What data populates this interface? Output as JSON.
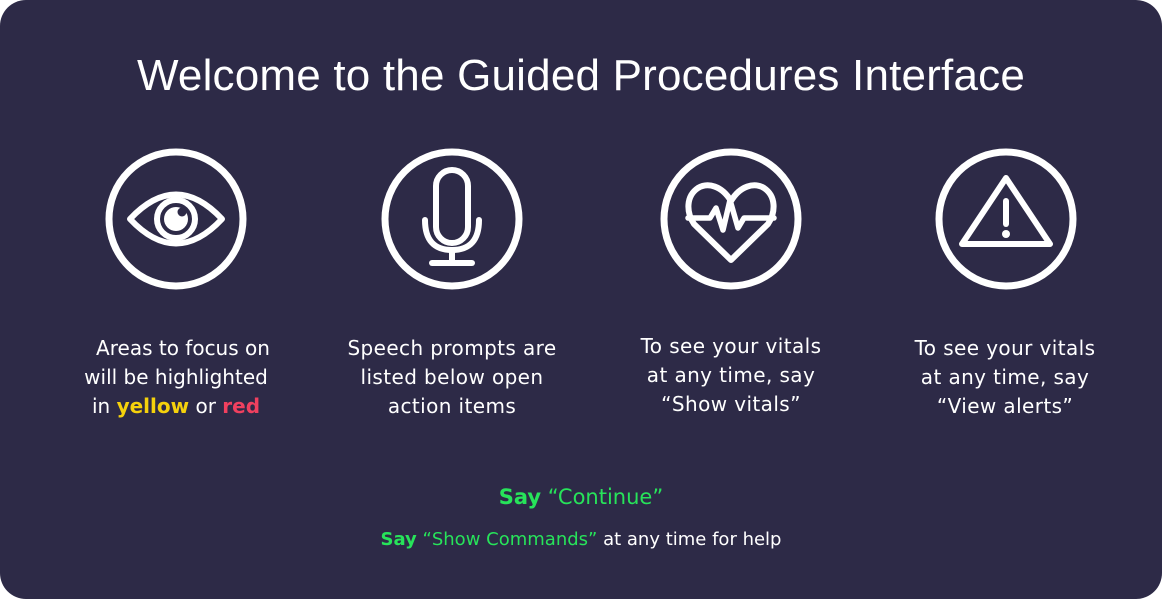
{
  "title": "Welcome to the Guided Procedures Interface",
  "items": [
    {
      "icon": "eye-icon",
      "lines": [
        "Areas to focus on",
        "will be highlighted"
      ],
      "line3_prefix": "in ",
      "highlight_yellow": "yellow",
      "line3_mid": " or ",
      "highlight_red": "red"
    },
    {
      "icon": "microphone-icon",
      "lines": [
        "Speech prompts are",
        "listed below open",
        "action items"
      ]
    },
    {
      "icon": "heart-pulse-icon",
      "lines": [
        "To see your vitals",
        "at any time, say",
        "“Show vitals”"
      ]
    },
    {
      "icon": "warning-icon",
      "lines": [
        "To see your vitals",
        "at any time, say",
        "“View alerts”"
      ]
    }
  ],
  "continue_prompt": {
    "say": "Say",
    "command": " “Continue”"
  },
  "help_prompt": {
    "say": "Say",
    "command": " “Show Commands”",
    "suffix": " at any time for help"
  },
  "colors": {
    "background": "#2d2a47",
    "yellow": "#f5d10c",
    "red": "#f0405f",
    "green": "#27e35a"
  }
}
